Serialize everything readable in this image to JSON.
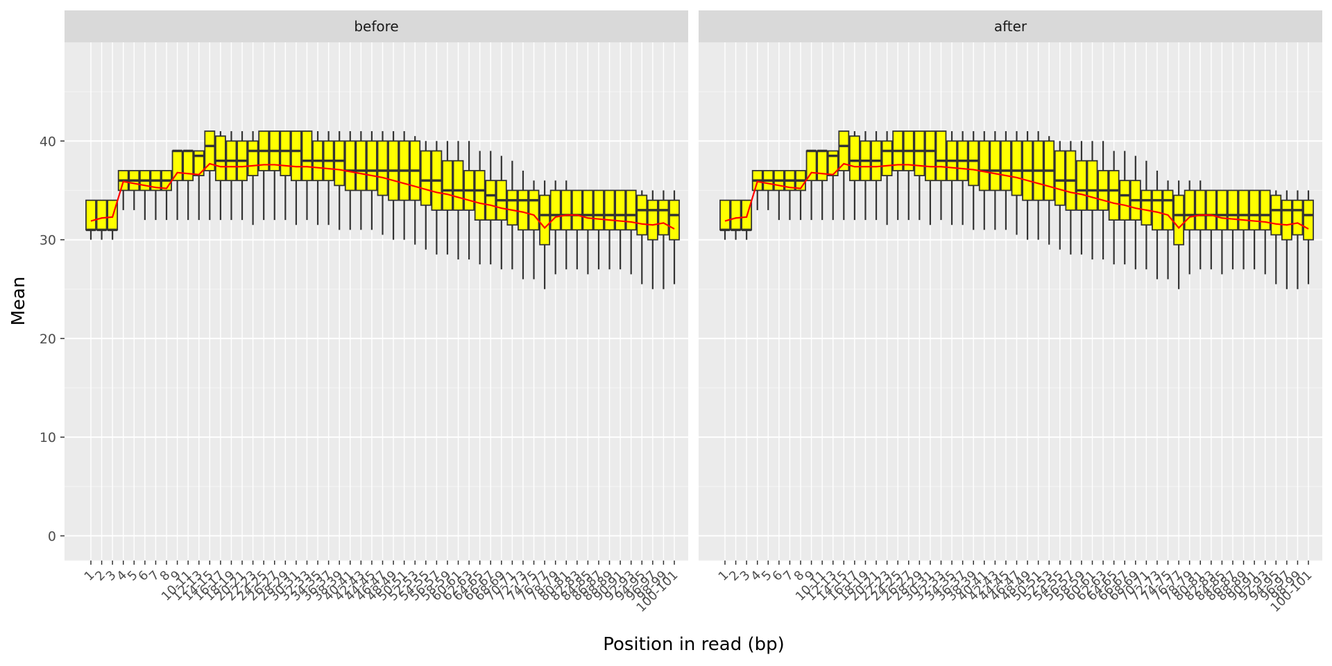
{
  "chart_data": {
    "type": "box",
    "facet_labels": [
      "before",
      "after"
    ],
    "xlabel": "Position in read (bp)",
    "ylabel": "Mean",
    "ylim": [
      -2.5,
      50
    ],
    "y_ticks": [
      0,
      10,
      20,
      30,
      40
    ],
    "categories": [
      "1",
      "2",
      "3",
      "4",
      "5",
      "6",
      "7",
      "8",
      "9",
      "10-11",
      "12-13",
      "14-15",
      "16-17",
      "18-19",
      "20-21",
      "22-23",
      "24-25",
      "26-27",
      "28-29",
      "30-31",
      "32-33",
      "34-35",
      "36-37",
      "38-39",
      "40-41",
      "42-43",
      "44-45",
      "46-47",
      "48-49",
      "50-51",
      "52-53",
      "54-55",
      "56-57",
      "58-59",
      "60-61",
      "62-63",
      "64-65",
      "66-67",
      "68-69",
      "70-71",
      "72-73",
      "74-75",
      "76-77",
      "78-79",
      "80-81",
      "82-83",
      "84-85",
      "86-87",
      "88-89",
      "90-91",
      "92-93",
      "94-95",
      "96-97",
      "98-99",
      "100-101"
    ],
    "box_fill": "#ffff00",
    "mean_line_color": "#ff0000",
    "series": [
      {
        "facet": "before",
        "q1": [
          31,
          31,
          31,
          35,
          35,
          35,
          35,
          35,
          36,
          36,
          36.5,
          37,
          36,
          36,
          36,
          36.5,
          37,
          37,
          36.5,
          36,
          36,
          36,
          36,
          35.5,
          35,
          35,
          35,
          34.5,
          34,
          34,
          34,
          33.5,
          33,
          33,
          33,
          33,
          32,
          32,
          32,
          31.5,
          31,
          31,
          29.5,
          31,
          31,
          31,
          31,
          31,
          31,
          31,
          31,
          30.5,
          30,
          30.5,
          30
        ],
        "median": [
          31,
          31,
          31,
          36,
          36,
          36,
          36,
          36,
          39,
          39,
          38.5,
          39.5,
          38,
          38,
          38,
          39,
          39,
          39,
          39,
          39,
          38,
          38,
          38,
          38,
          37,
          37,
          37,
          37,
          37,
          37,
          37,
          36,
          36,
          35,
          35,
          35,
          35,
          34.5,
          34,
          34,
          34,
          34,
          32.5,
          32.5,
          32.5,
          32.5,
          32.5,
          32.5,
          32.5,
          32.5,
          32.5,
          33,
          33,
          33,
          32.5
        ],
        "q3": [
          34,
          34,
          34,
          37,
          37,
          37,
          37,
          37,
          39,
          39,
          39,
          41,
          40.5,
          40,
          40,
          40,
          41,
          41,
          41,
          41,
          41,
          40,
          40,
          40,
          40,
          40,
          40,
          40,
          40,
          40,
          40,
          39,
          39,
          38,
          38,
          37,
          37,
          36,
          36,
          35,
          35,
          35,
          34.5,
          35,
          35,
          35,
          35,
          35,
          35,
          35,
          35,
          34.5,
          34,
          34,
          34
        ],
        "lower": [
          30,
          30,
          30,
          33,
          33,
          32,
          32,
          32,
          32,
          32,
          32,
          32,
          32,
          32,
          32,
          31.5,
          32,
          32,
          32,
          31.5,
          32,
          31.5,
          31.5,
          31,
          31,
          31,
          31,
          30.5,
          30,
          30,
          29.5,
          29,
          28.5,
          28.5,
          28,
          28,
          27.5,
          27.5,
          27,
          27,
          26,
          26,
          25,
          26.5,
          27,
          27,
          26.5,
          27,
          27,
          27,
          26.5,
          25.5,
          25,
          25,
          25.5
        ],
        "upper": [
          34,
          34,
          34,
          37,
          37,
          37,
          37,
          37,
          39,
          39,
          39,
          41,
          41,
          41,
          41,
          41,
          41,
          41,
          41,
          41,
          41,
          41,
          41,
          41,
          41,
          41,
          41,
          41,
          41,
          41,
          40.5,
          40,
          40,
          40,
          40,
          40,
          39,
          39,
          38.5,
          38,
          37,
          36,
          36,
          36,
          36,
          35,
          35,
          35,
          35,
          35,
          35,
          35,
          35,
          35,
          35
        ],
        "mean": [
          31.9,
          32.2,
          32.3,
          35.9,
          35.7,
          35.5,
          35.3,
          35.2,
          36.8,
          36.7,
          36.6,
          37.7,
          37.4,
          37.4,
          37.4,
          37.5,
          37.6,
          37.6,
          37.5,
          37.4,
          37.4,
          37.3,
          37.2,
          37.1,
          36.9,
          36.7,
          36.5,
          36.3,
          36.0,
          35.7,
          35.4,
          35.1,
          34.8,
          34.6,
          34.3,
          34.0,
          33.7,
          33.5,
          33.2,
          33.0,
          32.8,
          32.5,
          31.2,
          32.3,
          32.5,
          32.5,
          32.2,
          32.1,
          32.0,
          31.9,
          31.8,
          31.6,
          31.5,
          31.7,
          31.1
        ]
      },
      {
        "facet": "after",
        "q1": [
          31,
          31,
          31,
          35,
          35,
          35,
          35,
          35,
          36,
          36,
          36.5,
          37,
          36,
          36,
          36,
          36.5,
          37,
          37,
          36.5,
          36,
          36,
          36,
          36,
          35.5,
          35,
          35,
          35,
          34.5,
          34,
          34,
          34,
          33.5,
          33,
          33,
          33,
          33,
          32,
          32,
          32,
          31.5,
          31,
          31,
          29.5,
          31,
          31,
          31,
          31,
          31,
          31,
          31,
          31,
          30.5,
          30,
          30.5,
          30
        ],
        "median": [
          31,
          31,
          31,
          36,
          36,
          36,
          36,
          36,
          39,
          39,
          38.5,
          39.5,
          38,
          38,
          38,
          39,
          39,
          39,
          39,
          39,
          38,
          38,
          38,
          38,
          37,
          37,
          37,
          37,
          37,
          37,
          37,
          36,
          36,
          35,
          35,
          35,
          35,
          34.5,
          34,
          34,
          34,
          34,
          32.5,
          32.5,
          32.5,
          32.5,
          32.5,
          32.5,
          32.5,
          32.5,
          32.5,
          33,
          33,
          33,
          32.5
        ],
        "q3": [
          34,
          34,
          34,
          37,
          37,
          37,
          37,
          37,
          39,
          39,
          39,
          41,
          40.5,
          40,
          40,
          40,
          41,
          41,
          41,
          41,
          41,
          40,
          40,
          40,
          40,
          40,
          40,
          40,
          40,
          40,
          40,
          39,
          39,
          38,
          38,
          37,
          37,
          36,
          36,
          35,
          35,
          35,
          34.5,
          35,
          35,
          35,
          35,
          35,
          35,
          35,
          35,
          34.5,
          34,
          34,
          34
        ],
        "lower": [
          30,
          30,
          30,
          33,
          33,
          32,
          32,
          32,
          32,
          32,
          32,
          32,
          32,
          32,
          32,
          31.5,
          32,
          32,
          32,
          31.5,
          32,
          31.5,
          31.5,
          31,
          31,
          31,
          31,
          30.5,
          30,
          30,
          29.5,
          29,
          28.5,
          28.5,
          28,
          28,
          27.5,
          27.5,
          27,
          27,
          26,
          26,
          25,
          26.5,
          27,
          27,
          26.5,
          27,
          27,
          27,
          26.5,
          25.5,
          25,
          25,
          25.5
        ],
        "upper": [
          34,
          34,
          34,
          37,
          37,
          37,
          37,
          37,
          39,
          39,
          39,
          41,
          41,
          41,
          41,
          41,
          41,
          41,
          41,
          41,
          41,
          41,
          41,
          41,
          41,
          41,
          41,
          41,
          41,
          41,
          40.5,
          40,
          40,
          40,
          40,
          40,
          39,
          39,
          38.5,
          38,
          37,
          36,
          36,
          36,
          36,
          35,
          35,
          35,
          35,
          35,
          35,
          35,
          35,
          35,
          35
        ],
        "mean": [
          31.9,
          32.2,
          32.3,
          35.9,
          35.7,
          35.5,
          35.3,
          35.2,
          36.8,
          36.7,
          36.6,
          37.7,
          37.4,
          37.4,
          37.4,
          37.5,
          37.6,
          37.6,
          37.5,
          37.4,
          37.4,
          37.3,
          37.2,
          37.1,
          36.9,
          36.7,
          36.5,
          36.3,
          36.0,
          35.7,
          35.4,
          35.1,
          34.8,
          34.6,
          34.3,
          34.0,
          33.7,
          33.5,
          33.2,
          33.0,
          32.8,
          32.5,
          31.2,
          32.3,
          32.5,
          32.5,
          32.2,
          32.1,
          32.0,
          31.9,
          31.8,
          31.6,
          31.5,
          31.7,
          31.1
        ]
      }
    ]
  }
}
